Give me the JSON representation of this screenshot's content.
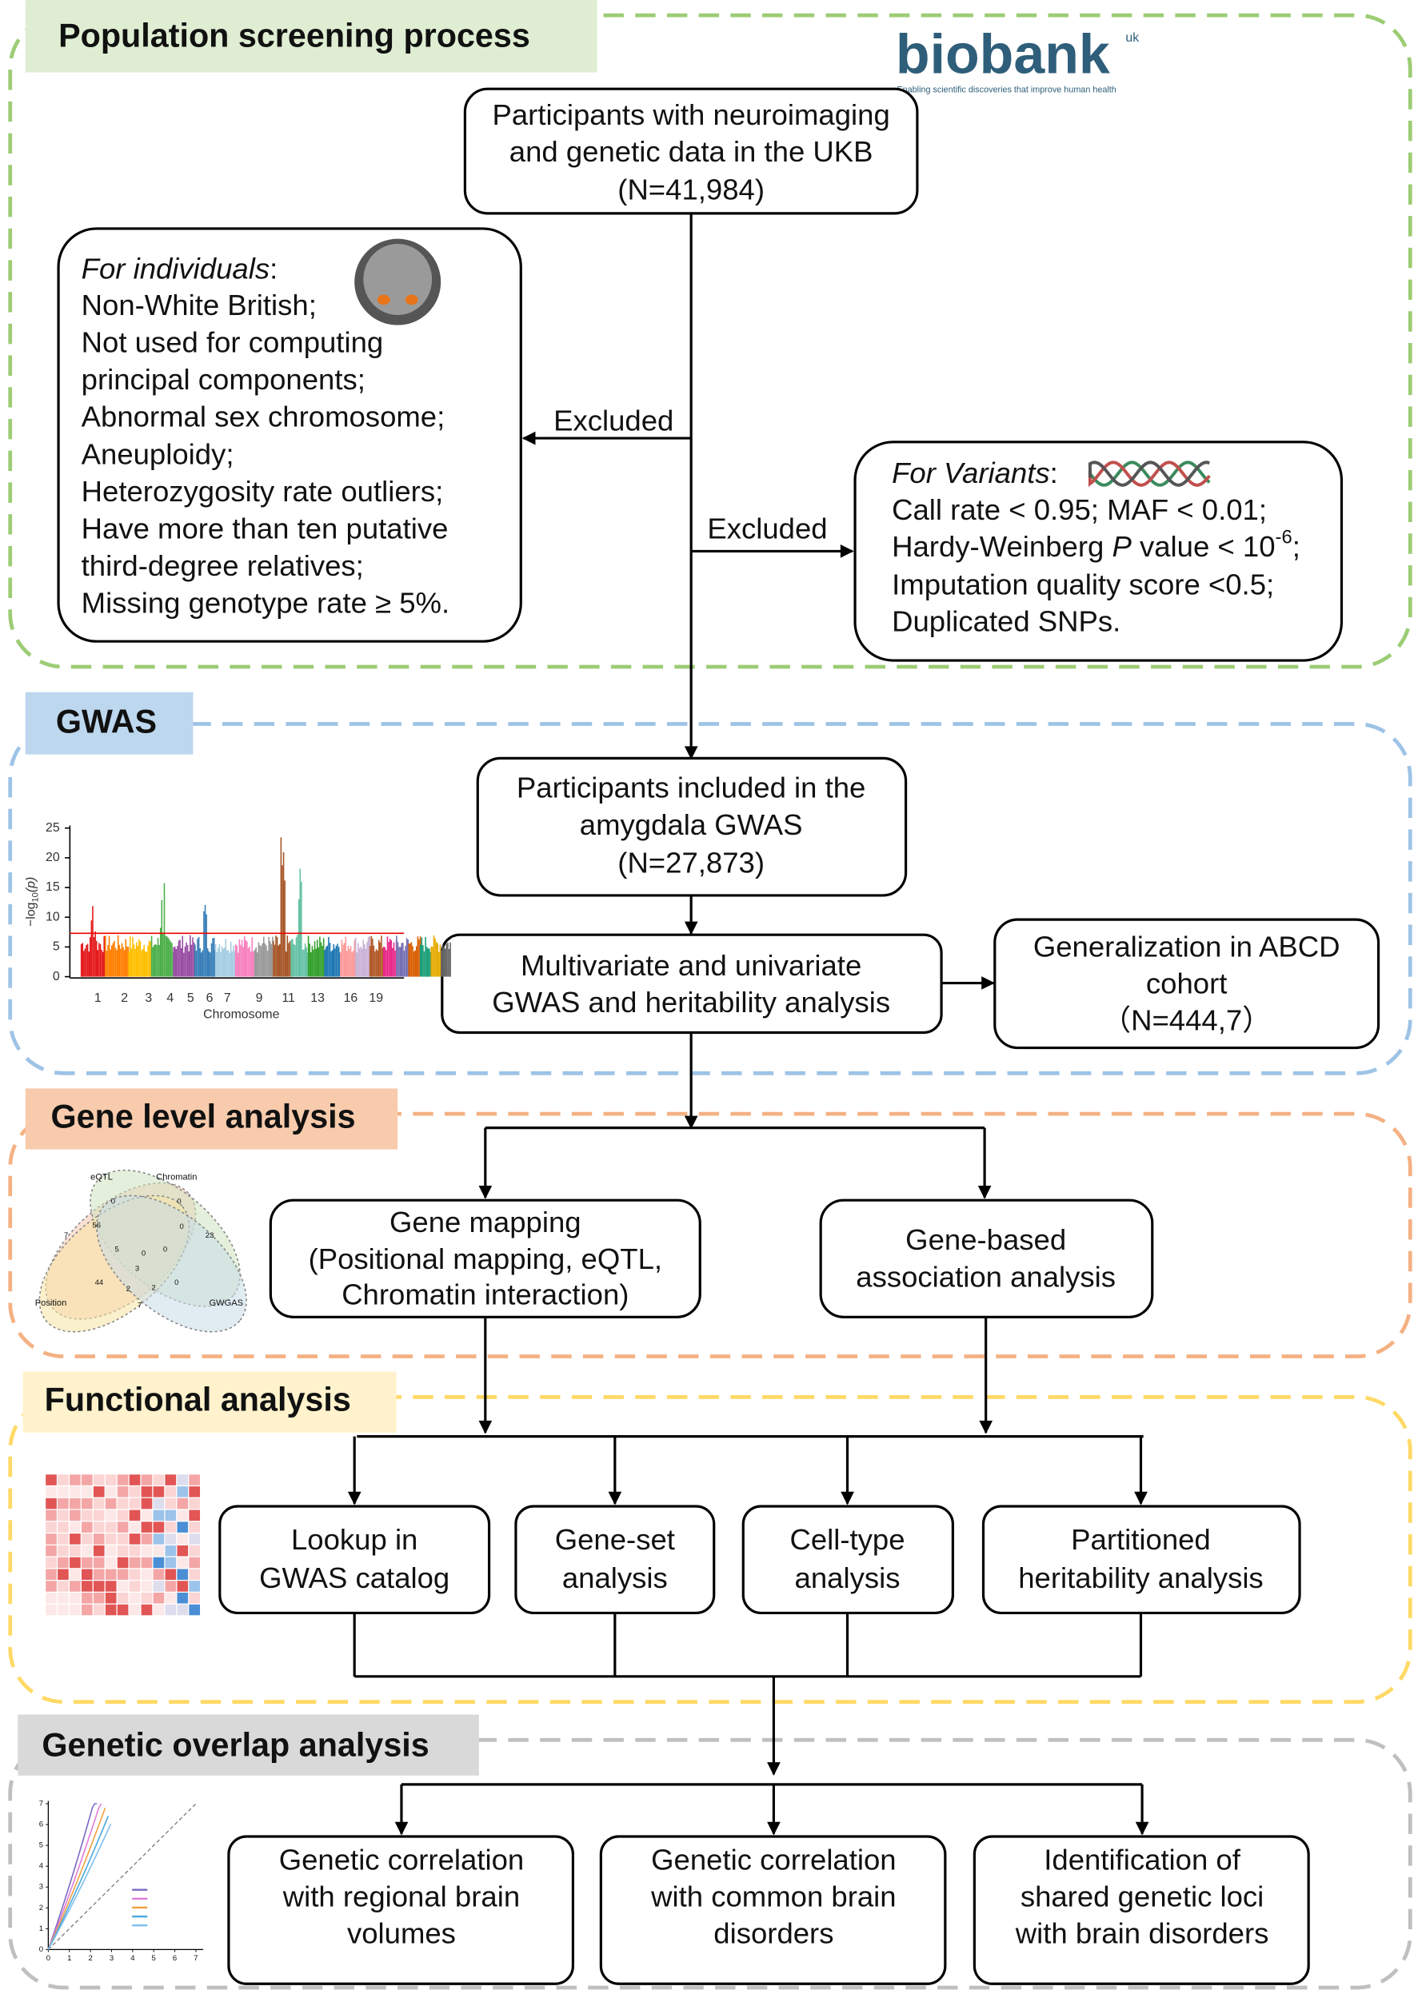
{
  "logo": {
    "name": "biobank",
    "suffix": "uk",
    "tagline": "Enabling scientific discoveries that improve human health"
  },
  "sections": [
    {
      "title": "Population screening process"
    },
    {
      "title": "GWAS"
    },
    {
      "title": "Gene level analysis"
    },
    {
      "title": "Functional analysis"
    },
    {
      "title": "Genetic overlap analysis"
    }
  ],
  "screening": {
    "participants": [
      "Participants with neuroimaging",
      "and genetic data in the UKB",
      "(N=41,984)"
    ],
    "excluded_left": "Excluded",
    "excluded_right": "Excluded",
    "individuals": {
      "heading": "For individuals",
      "heading_suffix": ":",
      "items": [
        "Non-White British;",
        "Not used for computing",
        "principal components;",
        "Abnormal sex chromosome;",
        "Aneuploidy;",
        "Heterozygosity rate outliers;",
        "Have more than ten putative",
        "third-degree relatives;",
        "Missing genotype rate ≥ 5%."
      ]
    },
    "variants": {
      "heading": "For Variants",
      "heading_suffix": ":",
      "items": [
        "Call rate < 0.95; MAF < 0.01;"
      ],
      "hwe": {
        "pre": "Hardy-Weinberg ",
        "italic": "P",
        "mid": " value < 10",
        "sup": "-6",
        "post": ";"
      },
      "items_after": [
        "Imputation quality score <0.5;",
        "Duplicated SNPs."
      ]
    }
  },
  "gwas": {
    "included": [
      "Participants included in the",
      "amygdala GWAS",
      "(N=27,873)"
    ],
    "analysis": [
      "Multivariate and univariate",
      "GWAS and heritability analysis"
    ],
    "generalization": [
      "Generalization in ABCD",
      "cohort",
      "（N=444,7）"
    ]
  },
  "manhattan": {
    "ylabel": {
      "pre": "−log",
      "sub": "10",
      "post": "(p)"
    },
    "yticks": [
      0,
      5,
      10,
      15,
      20,
      25
    ],
    "xticks": [
      "1",
      "2",
      "3",
      "4",
      "5",
      "6",
      "7",
      "9",
      "11",
      "13",
      "16",
      "19"
    ],
    "xlabel": "Chromosome"
  },
  "gene_level": {
    "mapping": [
      "Gene mapping",
      "(Positional mapping, eQTL,",
      "Chromatin interaction)"
    ],
    "gene_based": [
      "Gene-based",
      "association analysis"
    ]
  },
  "venn": {
    "labels": [
      "eQTL",
      "Chromatin",
      "Position",
      "GWGAS"
    ],
    "numbers": [
      "7",
      "56",
      "0",
      "0",
      "0",
      "23",
      "5",
      "0",
      "0",
      "44",
      "3",
      "2",
      "0",
      "2",
      "7"
    ]
  },
  "functional": {
    "boxes": [
      [
        "Lookup in",
        "GWAS catalog"
      ],
      [
        "Gene-set",
        "analysis"
      ],
      [
        "Cell-type",
        "analysis"
      ],
      [
        "Partitioned",
        "heritability analysis"
      ]
    ]
  },
  "overlap": {
    "boxes": [
      [
        "Genetic correlation",
        "with regional brain",
        "volumes"
      ],
      [
        "Genetic correlation",
        "with common brain",
        "disorders"
      ],
      [
        "Identification of",
        "shared genetic loci",
        "with brain disorders"
      ]
    ]
  },
  "qq": {
    "ticks": [
      0,
      1,
      2,
      3,
      4,
      5,
      6,
      7
    ]
  }
}
